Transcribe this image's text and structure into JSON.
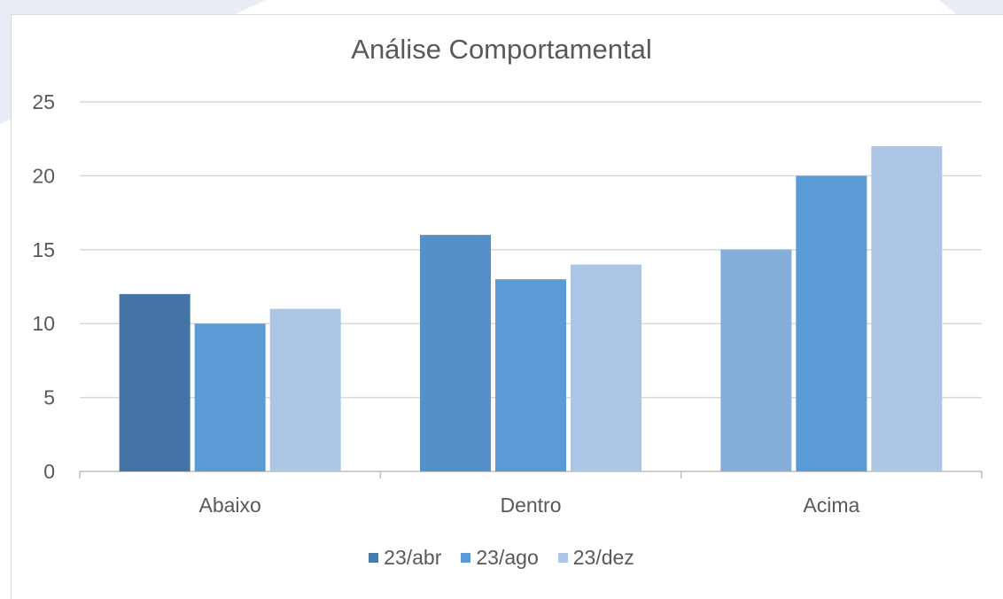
{
  "chart_data": {
    "type": "bar",
    "title": "Análise Comportamental",
    "categories": [
      "Abaixo",
      "Dentro",
      "Acima"
    ],
    "series": [
      {
        "name": "23/abr",
        "values": [
          12,
          16,
          15
        ],
        "color": "#4a7aab"
      },
      {
        "name": "23/ago",
        "values": [
          10,
          13,
          20
        ],
        "color": "#5b9bd5"
      },
      {
        "name": "23/dez",
        "values": [
          11,
          14,
          22
        ],
        "color": "#adc6e5"
      }
    ],
    "bar_colors": [
      [
        "#4374a5",
        "#5590c8",
        "#86aedb"
      ],
      [
        "#5b9bd5",
        "#5b9bd5",
        "#5b9bd5"
      ],
      [
        "#adc6e5",
        "#adc6e5",
        "#adc6e5"
      ]
    ],
    "ylim": [
      0,
      25
    ],
    "yticks": [
      "0",
      "5",
      "10",
      "15",
      "20",
      "25"
    ],
    "grid": true,
    "legend": "bottom",
    "xlabel": "",
    "ylabel": ""
  }
}
